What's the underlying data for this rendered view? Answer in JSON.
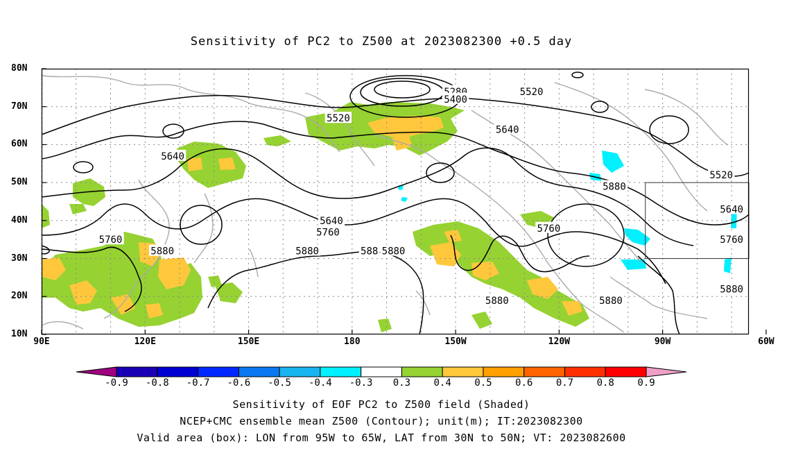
{
  "title": "Sensitivity of PC2 to Z500 at 2023082300 +0.5 day",
  "y_ticks": [
    "80N",
    "70N",
    "60N",
    "50N",
    "40N",
    "30N",
    "20N",
    "10N"
  ],
  "x_ticks": [
    "90E",
    "120E",
    "150E",
    "180",
    "150W",
    "120W",
    "90W",
    "60W"
  ],
  "contour_labels": [
    {
      "text": "5280",
      "lon": -150,
      "lat": 74
    },
    {
      "text": "5400",
      "lon": -150,
      "lat": 72
    },
    {
      "text": "5520",
      "lon": 176,
      "lat": 67
    },
    {
      "text": "5520",
      "lon": -128,
      "lat": 74
    },
    {
      "text": "5640",
      "lon": -135,
      "lat": 64
    },
    {
      "text": "5640",
      "lon": 128,
      "lat": 57
    },
    {
      "text": "5520",
      "lon": -73,
      "lat": 52
    },
    {
      "text": "5640",
      "lon": -70,
      "lat": 43
    },
    {
      "text": "5880",
      "lon": -104,
      "lat": 49
    },
    {
      "text": "5640",
      "lon": 174,
      "lat": 40
    },
    {
      "text": "5760",
      "lon": -123,
      "lat": 38
    },
    {
      "text": "5760",
      "lon": 173,
      "lat": 37
    },
    {
      "text": "5760",
      "lon": -70,
      "lat": 35
    },
    {
      "text": "5760",
      "lon": 110,
      "lat": 35
    },
    {
      "text": "5880",
      "lon": 125,
      "lat": 32
    },
    {
      "text": "5880",
      "lon": 167,
      "lat": 32
    },
    {
      "text": "588",
      "lon": -175,
      "lat": 32
    },
    {
      "text": "5880",
      "lon": -168,
      "lat": 32
    },
    {
      "text": "5880",
      "lon": -70,
      "lat": 22
    },
    {
      "text": "5880",
      "lon": -138,
      "lat": 19
    },
    {
      "text": "5880",
      "lon": -105,
      "lat": 19
    }
  ],
  "box": {
    "lon_min": -95,
    "lon_max": -65,
    "lat_min": 30,
    "lat_max": 50
  },
  "colorbar": {
    "labels": [
      "-0.9",
      "-0.8",
      "-0.7",
      "-0.6",
      "-0.5",
      "-0.4",
      "-0.3",
      "0.3",
      "0.4",
      "0.5",
      "0.6",
      "0.7",
      "0.8",
      "0.9"
    ],
    "colors": [
      "#a0007f",
      "#1a00b4",
      "#0000d2",
      "#0028ff",
      "#0a78f0",
      "#18b4f0",
      "#00f0ff",
      "#ffffff",
      "#96d232",
      "#ffc83c",
      "#ffa000",
      "#ff6400",
      "#ff3000",
      "#ff0000",
      "#f0a0c8"
    ]
  },
  "footer": [
    "Sensitivity of EOF PC2 to Z500 field (Shaded)",
    "NCEP+CMC ensemble mean Z500 (Contour); unit(m); IT:2023082300",
    "Valid area (box): LON from 95W to 65W, LAT from 30N to 50N; VT: 2023082600"
  ]
}
